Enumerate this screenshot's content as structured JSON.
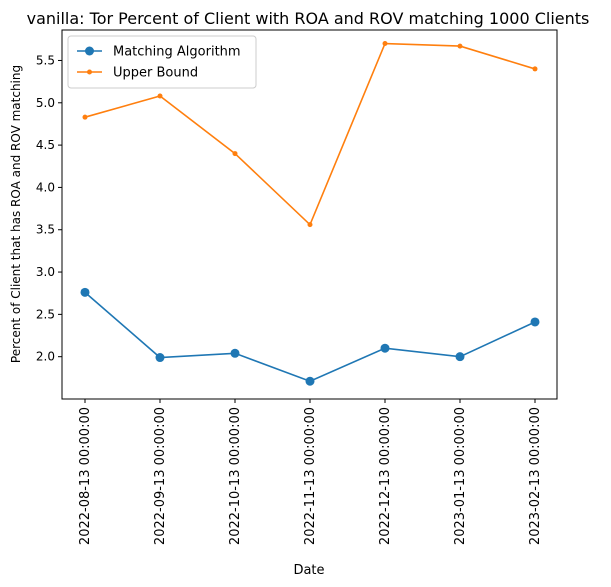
{
  "chart_data": {
    "type": "line",
    "title": "vanilla: Tor Percent of Client with ROA and ROV matching 1000 Clients",
    "xlabel": "Date",
    "ylabel": "Percent of Client that has ROA and ROV matching",
    "categories": [
      "2022-08-13 00:00:00",
      "2022-09-13 00:00:00",
      "2022-10-13 00:00:00",
      "2022-11-13 00:00:00",
      "2022-12-13 00:00:00",
      "2023-01-13 00:00:00",
      "2023-02-13 00:00:00"
    ],
    "series": [
      {
        "name": "Matching Algorithm",
        "color": "#1f77b4",
        "marker": "large-circle",
        "values": [
          2.76,
          1.99,
          2.04,
          1.71,
          2.1,
          2.0,
          2.41
        ]
      },
      {
        "name": "Upper Bound",
        "color": "#ff7f0e",
        "marker": "small-circle",
        "values": [
          4.83,
          5.08,
          4.4,
          3.56,
          5.7,
          5.67,
          5.4
        ]
      }
    ],
    "ylim": [
      1.5,
      5.86
    ],
    "yticks": [
      "2.0",
      "2.5",
      "3.0",
      "3.5",
      "4.0",
      "4.5",
      "5.0",
      "5.5"
    ],
    "grid": false,
    "legend": "top-left"
  }
}
